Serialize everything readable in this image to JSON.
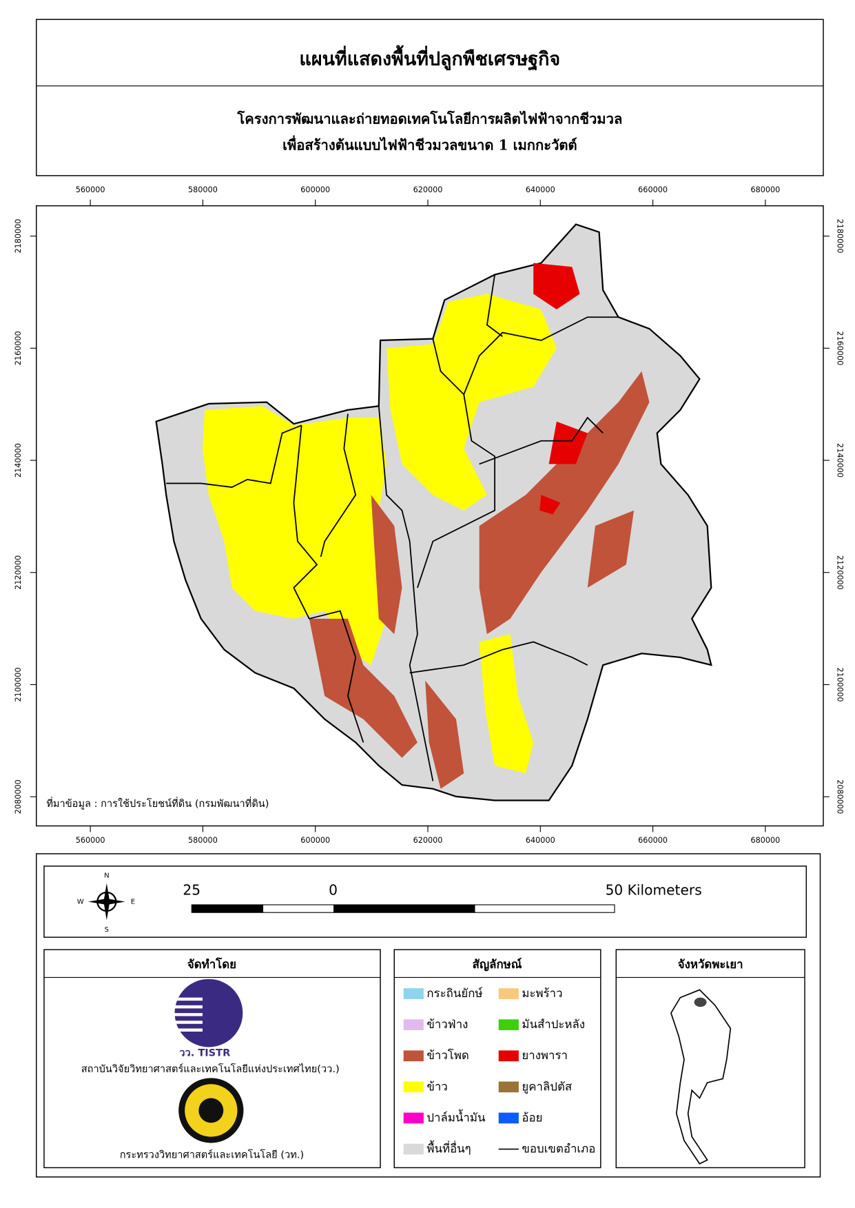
{
  "header": {
    "title": "แผนที่แสดงพื้นที่ปลูกพืชเศรษฐกิจ",
    "subtitle": [
      "โครงการพัฒนาและถ่ายทอดเทคโนโลยีการผลิตไฟฟ้าจากชีวมวล",
      "เพื่อสร้างต้นแบบไฟฟ้าชีวมวลขนาด 1 เมกกะวัตต์"
    ]
  },
  "map": {
    "xlim": [
      550400,
      690300
    ],
    "ylim": [
      2074800,
      2185400
    ],
    "xticks": [
      560000,
      580000,
      600000,
      620000,
      640000,
      660000,
      680000
    ],
    "yticks": [
      2080000,
      2100000,
      2120000,
      2140000,
      2160000,
      2180000
    ],
    "source_note": "ที่มาข้อมูล : การใช้ประโยชน์ที่ดิน (กรมพัฒนาที่ดิน)"
  },
  "north_arrow": {
    "labels": [
      "N",
      "S",
      "W",
      "E"
    ]
  },
  "scale_bar": {
    "labels": [
      "25",
      "0",
      "50 Kilometers"
    ]
  },
  "producer": {
    "title": "จัดทำโดย",
    "logo_text": "วว. TISTR",
    "orgs": [
      "สถาบันวิจัยวิทยาศาสตร์และเทคโนโลยีแห่งประเทศไทย(วว.)",
      "กระทรวงวิทยาศาสตร์และเทคโนโลยี (วท.)"
    ]
  },
  "legend": {
    "title": "สัญลักษณ์",
    "items": [
      {
        "label": "กระถินยักษ์",
        "color": "#8fd3ee"
      },
      {
        "label": "ข้าวฟ่าง",
        "color": "#e3b9f2"
      },
      {
        "label": "ข้าวโพด",
        "color": "#c0533a"
      },
      {
        "label": "ข้าว",
        "color": "#ffff00"
      },
      {
        "label": "ปาล์มน้ำมัน",
        "color": "#ff00c8"
      },
      {
        "label": "พื้นที่อื่นๆ",
        "color": "#d9d9d9"
      },
      {
        "label": "มะพร้าว",
        "color": "#f7c97e"
      },
      {
        "label": "มันสำปะหลัง",
        "color": "#3ccf0a"
      },
      {
        "label": "ยางพารา",
        "color": "#e60000"
      },
      {
        "label": "ยูคาลิปตัส",
        "color": "#9a7434"
      },
      {
        "label": "อ้อย",
        "color": "#0a5cff"
      },
      {
        "label": "ขอบเขตอำเภอ",
        "color": "#000000",
        "shape": "line"
      }
    ]
  },
  "inset": {
    "title": "จังหวัดพะเยา"
  }
}
